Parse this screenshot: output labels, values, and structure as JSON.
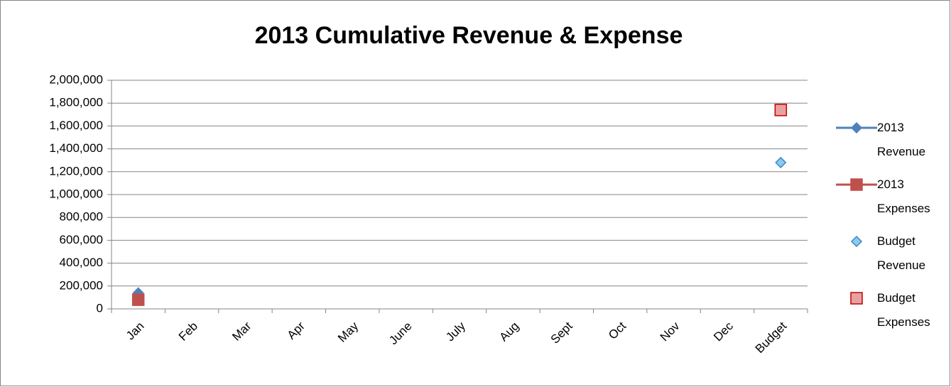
{
  "chart_data": {
    "type": "line",
    "title": "2013 Cumulative Revenue & Expense",
    "categories": [
      "Jan",
      "Feb",
      "Mar",
      "Apr",
      "May",
      "June",
      "July",
      "Aug",
      "Sept",
      "Oct",
      "Nov",
      "Dec",
      "Budget"
    ],
    "series": [
      {
        "name": "2013 Revenue",
        "color": "#4f81bd",
        "marker": "diamond",
        "marker_fill": "#4f81bd",
        "line": true,
        "values": [
          140000,
          null,
          null,
          null,
          null,
          null,
          null,
          null,
          null,
          null,
          null,
          null,
          null
        ]
      },
      {
        "name": "2013 Expenses",
        "color": "#c0504d",
        "marker": "square",
        "marker_fill": "#c0504d",
        "line": true,
        "values": [
          80000,
          null,
          null,
          null,
          null,
          null,
          null,
          null,
          null,
          null,
          null,
          null,
          null
        ]
      },
      {
        "name": "Budget Revenue",
        "color": "#3a87c8",
        "marker": "diamond",
        "marker_fill": "#8ccbee",
        "line": false,
        "values": [
          null,
          null,
          null,
          null,
          null,
          null,
          null,
          null,
          null,
          null,
          null,
          null,
          1280000
        ]
      },
      {
        "name": "Budget Expenses",
        "color": "#c00000",
        "marker": "square",
        "marker_fill": "#e8a1a1",
        "line": false,
        "values": [
          null,
          null,
          null,
          null,
          null,
          null,
          null,
          null,
          null,
          null,
          null,
          null,
          1740000
        ]
      }
    ],
    "ylim": [
      0,
      2000000
    ],
    "yticks": [
      0,
      {
        "value": 200000,
        "label": "200,000"
      },
      {
        "value": 400000,
        "label": "400,000"
      },
      {
        "value": 600000,
        "label": "600,000"
      },
      {
        "value": 800000,
        "label": "800,000"
      },
      {
        "value": 1000000,
        "label": "1,000,000"
      },
      {
        "value": 1200000,
        "label": "1,200,000"
      },
      {
        "value": 1400000,
        "label": "1,400,000"
      },
      {
        "value": 1600000,
        "label": "1,600,000"
      },
      {
        "value": 1800000,
        "label": "1,800,000"
      },
      {
        "value": 2000000,
        "label": "2,000,000"
      }
    ],
    "grid": true,
    "legend": "right"
  }
}
